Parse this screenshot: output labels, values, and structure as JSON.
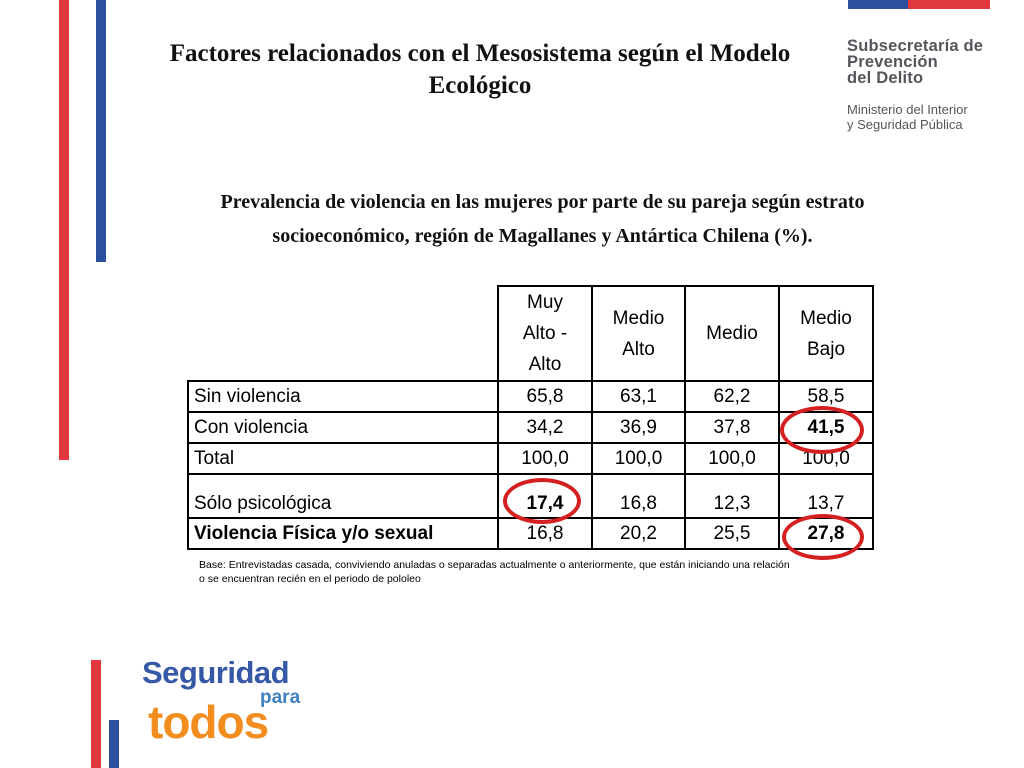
{
  "header": {
    "title_line1": "Factores relacionados con el Mesosistema según el Modelo",
    "title_line2": "Ecológico"
  },
  "brand_top": {
    "line1": "Subsecretaría de",
    "line2": "Prevención",
    "line3": "del Delito",
    "line4": "Ministerio del Interior",
    "line5": "y Seguridad Pública"
  },
  "table_title": {
    "line1": "Prevalencia de violencia en las mujeres por parte de su pareja según estrato",
    "line2": "socioeconómico, región de Magallanes y Antártica Chilena (%)."
  },
  "table": {
    "columns": [
      {
        "line1": "Muy",
        "line2": "Alto -",
        "line3": "Alto"
      },
      {
        "line1": "Medio",
        "line2": "Alto"
      },
      {
        "line1": "Medio"
      },
      {
        "line1": "Medio",
        "line2": "Bajo"
      }
    ],
    "rows": [
      {
        "label": "Sin violencia",
        "values": [
          "65,8",
          "63,1",
          "62,2",
          "58,5"
        ]
      },
      {
        "label": "Con violencia",
        "values": [
          "34,2",
          "36,9",
          "37,8",
          "41,5"
        ]
      },
      {
        "label": "Total",
        "values": [
          "100,0",
          "100,0",
          "100,0",
          "100,0"
        ]
      },
      {
        "label": "Sólo psicológica",
        "values": [
          "17,4",
          "16,8",
          "12,3",
          "13,7"
        ]
      },
      {
        "label": "Violencia Física y/o sexual",
        "values": [
          "16,8",
          "20,2",
          "25,5",
          "27,8"
        ]
      }
    ]
  },
  "footnote": {
    "line1": "Base: Entrevistadas casada, conviviendo anuladas o separadas actualmente o anteriormente, que están iniciando una relación",
    "line2": "o se encuentran recién en el periodo de  pololeo"
  },
  "brand_bottom": {
    "word1": "Seguridad",
    "word2": "para",
    "word3": "todos"
  },
  "colors": {
    "red": "#e0383e",
    "blue": "#2c4f9e",
    "highlight_circle": "#d42020",
    "logo_blue": "#3557a6",
    "logo_orange": "#f28d1f"
  }
}
